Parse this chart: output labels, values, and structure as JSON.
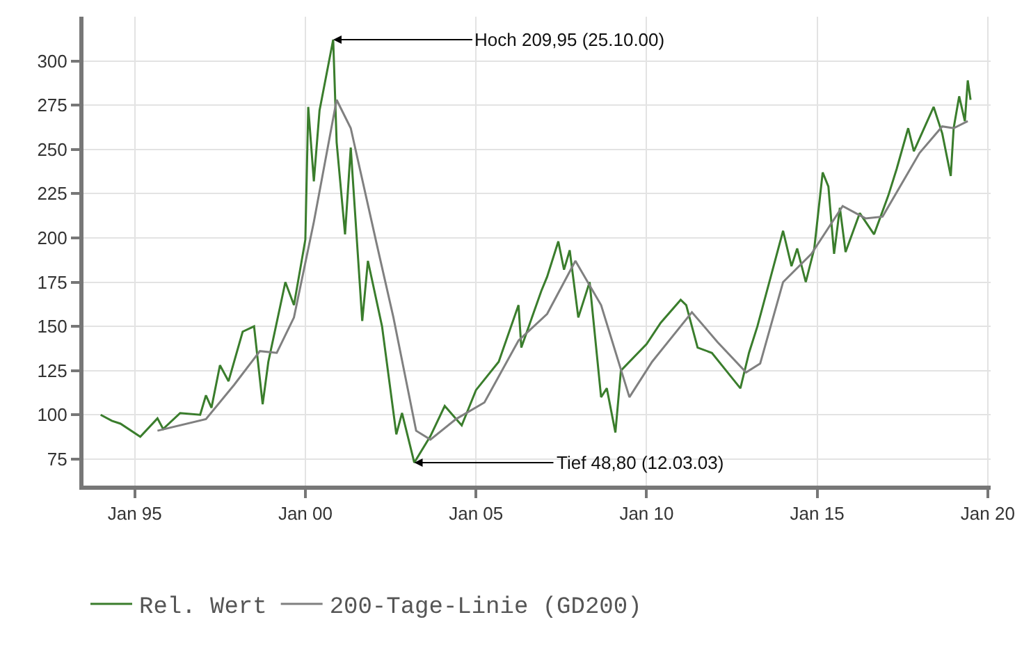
{
  "chart_data": {
    "type": "line",
    "xlim": [
      "1993-07",
      "2020-02"
    ],
    "ylim": [
      60,
      325
    ],
    "xticks": [
      {
        "value": "1995-01",
        "label": "Jan 95"
      },
      {
        "value": "2000-01",
        "label": "Jan 00"
      },
      {
        "value": "2005-01",
        "label": "Jan 05"
      },
      {
        "value": "2010-01",
        "label": "Jan 10"
      },
      {
        "value": "2015-01",
        "label": "Jan 15"
      },
      {
        "value": "2020-01",
        "label": "Jan 20"
      }
    ],
    "yticks": [
      75,
      100,
      125,
      150,
      175,
      200,
      225,
      250,
      275,
      300
    ],
    "grid": true,
    "legend": "bottom",
    "marker": "none",
    "line_style": "solid",
    "series": [
      {
        "name": "Rel. Wert",
        "color": "#3a7d2c",
        "x": [
          "1994-01",
          "1994-05",
          "1994-08",
          "1995-03",
          "1995-09",
          "1995-11",
          "1996-05",
          "1996-12",
          "1997-02",
          "1997-04",
          "1997-07",
          "1997-10",
          "1998-03",
          "1998-07",
          "1998-10",
          "1998-12",
          "1999-06",
          "1999-09",
          "2000-01",
          "2000-02",
          "2000-04",
          "2000-06",
          "2000-10-25",
          "2000-12",
          "2001-03",
          "2001-05",
          "2001-09",
          "2001-11",
          "2002-04",
          "2002-09",
          "2002-11",
          "2003-03-12",
          "2003-09",
          "2004-02",
          "2004-08",
          "2005-01",
          "2005-09",
          "2006-04",
          "2006-05",
          "2006-12",
          "2007-02",
          "2007-06",
          "2007-08",
          "2007-10",
          "2008-01",
          "2008-05",
          "2008-09",
          "2008-11",
          "2009-02",
          "2009-04",
          "2010-01",
          "2010-06",
          "2011-01",
          "2011-03",
          "2011-07",
          "2011-12",
          "2012-05",
          "2012-10",
          "2013-01",
          "2013-04",
          "2013-09",
          "2014-01",
          "2014-04",
          "2014-06",
          "2014-09",
          "2014-12",
          "2015-03",
          "2015-05",
          "2015-07",
          "2015-09",
          "2015-11",
          "2016-04",
          "2016-09",
          "2017-02",
          "2017-05",
          "2017-09",
          "2017-11",
          "2018-06",
          "2018-09",
          "2018-12",
          "2019-01",
          "2019-03",
          "2019-05",
          "2019-06",
          "2019-07"
        ],
        "values": [
          100,
          96.6,
          95,
          87.6,
          98,
          92,
          101,
          100,
          111,
          104,
          128,
          119,
          147,
          150,
          106,
          130,
          175,
          162,
          199,
          274,
          232,
          272,
          312,
          254,
          202,
          251,
          153,
          187,
          150,
          89,
          101,
          73,
          88,
          105,
          94,
          114,
          130,
          162,
          138,
          170,
          178,
          198,
          182,
          193,
          155,
          175,
          110,
          115,
          90,
          125,
          140,
          152,
          165,
          162,
          138,
          135,
          125,
          115,
          135,
          150,
          180,
          204,
          184,
          194,
          175,
          194,
          237,
          229,
          191,
          217,
          192,
          214,
          202,
          224,
          239,
          262,
          249,
          274,
          259,
          235,
          262,
          280,
          266,
          289,
          278
        ]
      },
      {
        "name": "200-Tage-Linie (GD200)",
        "color": "#808080",
        "x": [
          "1995-09",
          "1997-02",
          "1997-12",
          "1998-09",
          "1999-03",
          "1999-09",
          "2000-04",
          "2000-12",
          "2001-05",
          "2002-02",
          "2002-08",
          "2003-04",
          "2003-09",
          "2004-06",
          "2005-04",
          "2006-04",
          "2007-02",
          "2007-12",
          "2008-09",
          "2009-07",
          "2010-03",
          "2011-05",
          "2012-02",
          "2012-12",
          "2013-05",
          "2014-01",
          "2014-11",
          "2015-10",
          "2016-06",
          "2016-12",
          "2018-01",
          "2018-09",
          "2019-01",
          "2019-06"
        ],
        "values": [
          91,
          97.6,
          117,
          136,
          135,
          155,
          209,
          278,
          262,
          197,
          155,
          91,
          86,
          97.6,
          107,
          142,
          157,
          187,
          162,
          110,
          130,
          158,
          141,
          124,
          129,
          175,
          191,
          218,
          211,
          212,
          248,
          263,
          262,
          266
        ]
      }
    ],
    "annotations": [
      {
        "text": "Hoch 209,95 (25.10.00)",
        "x": "2000-10-25",
        "y": 312
      },
      {
        "text": "Tief 48,80 (12.03.03)",
        "x": "2003-03-12",
        "y": 73
      }
    ]
  }
}
